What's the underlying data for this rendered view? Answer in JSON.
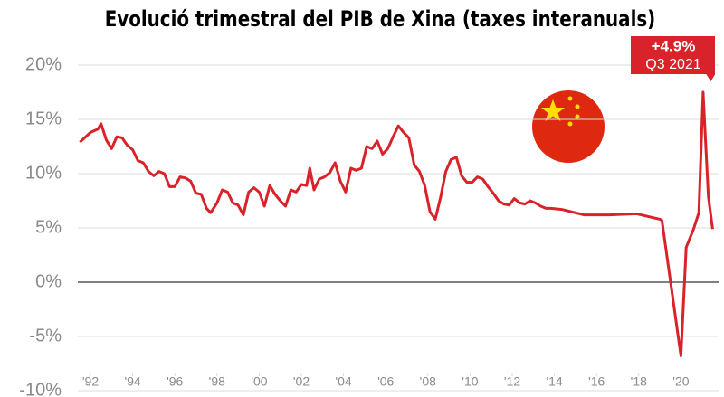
{
  "chart_data": {
    "type": "line",
    "title": "Evolució trimestral del PIB de Xina (taxes interanuals)",
    "x": [
      1991.5,
      1992,
      1992.35,
      1992.5,
      1992.75,
      1993,
      1993.25,
      1993.5,
      1993.75,
      1994,
      1994.25,
      1994.5,
      1994.75,
      1995,
      1995.25,
      1995.5,
      1995.75,
      1996,
      1996.25,
      1996.5,
      1996.75,
      1997,
      1997.25,
      1997.5,
      1997.7,
      1998,
      1998.25,
      1998.5,
      1998.75,
      1999,
      1999.25,
      1999.5,
      1999.75,
      2000,
      2000.25,
      2000.5,
      2000.75,
      2001,
      2001.25,
      2001.5,
      2001.75,
      2002,
      2002.25,
      2002.4,
      2002.6,
      2002.85,
      2003.1,
      2003.35,
      2003.6,
      2003.85,
      2004.1,
      2004.35,
      2004.6,
      2004.85,
      2005.1,
      2005.35,
      2005.6,
      2005.85,
      2006.1,
      2006.35,
      2006.6,
      2006.85,
      2007.1,
      2007.35,
      2007.6,
      2007.85,
      2008.1,
      2008.35,
      2008.6,
      2008.85,
      2009.1,
      2009.35,
      2009.6,
      2009.85,
      2010.1,
      2010.35,
      2010.6,
      2010.85,
      2011.1,
      2011.35,
      2011.6,
      2011.85,
      2012.1,
      2012.35,
      2012.6,
      2012.85,
      2013.1,
      2013.35,
      2013.6,
      2013.85,
      2014.35,
      2015.4,
      2016.6,
      2017.9,
      2019,
      2019.1,
      2020,
      2020.25,
      2020.6,
      2020.85,
      2021.05,
      2021.3,
      2021.5
    ],
    "values": [
      12.9,
      13.8,
      14.1,
      14.6,
      13.1,
      12.3,
      13.4,
      13.3,
      12.6,
      12.2,
      11.2,
      11.0,
      10.2,
      9.8,
      10.2,
      10.0,
      8.8,
      8.8,
      9.7,
      9.6,
      9.3,
      8.2,
      8.1,
      6.8,
      6.4,
      7.3,
      8.5,
      8.3,
      7.3,
      7.1,
      6.2,
      8.3,
      8.7,
      8.3,
      7.0,
      8.9,
      8.1,
      7.5,
      7.0,
      8.5,
      8.3,
      9.0,
      8.9,
      10.5,
      8.5,
      9.5,
      9.7,
      10.1,
      11.0,
      9.3,
      8.3,
      10.5,
      10.3,
      10.5,
      12.5,
      12.3,
      13.0,
      11.8,
      12.3,
      13.4,
      14.4,
      13.8,
      13.3,
      10.8,
      10.2,
      8.9,
      6.5,
      5.8,
      7.8,
      10.2,
      11.3,
      11.5,
      9.8,
      9.2,
      9.2,
      9.7,
      9.5,
      8.8,
      8.2,
      7.5,
      7.2,
      7.1,
      7.7,
      7.3,
      7.2,
      7.5,
      7.3,
      7.0,
      6.8,
      6.8,
      6.7,
      6.2,
      6.2,
      6.3,
      5.8,
      5.7,
      -6.8,
      3.2,
      4.9,
      6.4,
      17.5,
      7.9,
      4.9
    ],
    "color": "#d8232a",
    "xlim": [
      1991.3,
      2021.8
    ],
    "xticks": [
      {
        "value": 1992,
        "label": "'92"
      },
      {
        "value": 1994,
        "label": "'94"
      },
      {
        "value": 1996,
        "label": "'96"
      },
      {
        "value": 1998,
        "label": "'98"
      },
      {
        "value": 2000,
        "label": "'00"
      },
      {
        "value": 2002,
        "label": "'02"
      },
      {
        "value": 2004,
        "label": "'04"
      },
      {
        "value": 2006,
        "label": "'06"
      },
      {
        "value": 2008,
        "label": "'08"
      },
      {
        "value": 2010,
        "label": "'10"
      },
      {
        "value": 2012,
        "label": "'12"
      },
      {
        "value": 2014,
        "label": "'14"
      },
      {
        "value": 2016,
        "label": "'16"
      },
      {
        "value": 2018,
        "label": "'18"
      },
      {
        "value": 2020,
        "label": "'20"
      }
    ],
    "ylim": [
      -10,
      20
    ],
    "yticks": [
      {
        "value": 20,
        "label": "20%"
      },
      {
        "value": 15,
        "label": "15%"
      },
      {
        "value": 10,
        "label": "10%"
      },
      {
        "value": 5,
        "label": "5%"
      },
      {
        "value": 0,
        "label": "0%"
      },
      {
        "value": -5,
        "label": "-5%"
      },
      {
        "value": -10,
        "label": "-10%"
      }
    ],
    "grid": true,
    "annotation": {
      "label": "+4.9%",
      "period": "Q3 2021"
    }
  }
}
